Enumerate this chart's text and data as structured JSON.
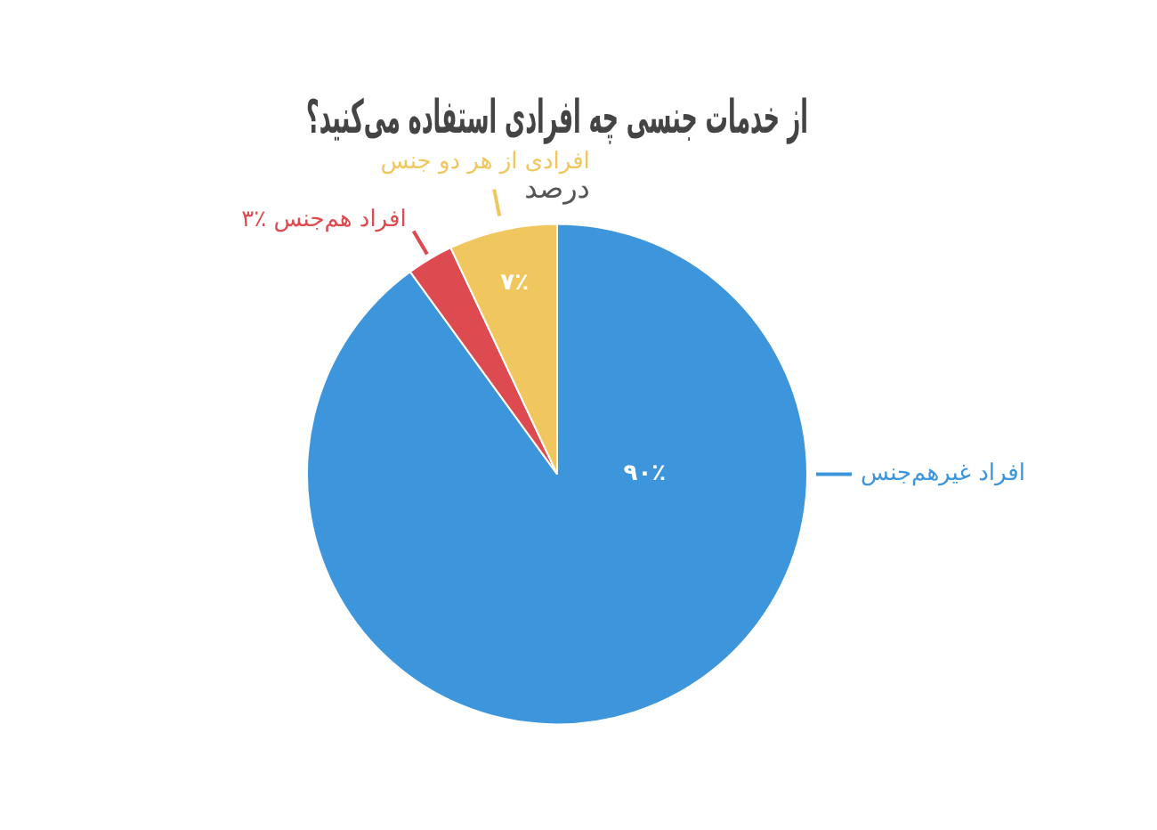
{
  "chart_data": {
    "type": "pie",
    "title": "از خدمات جنسی چه افرادی استفاده می‌کنید؟",
    "subtitle": "درصد",
    "categories": [
      "افراد غیرهم‌جنس",
      "افراد هم‌جنس",
      "افرادی از هر دو جنس"
    ],
    "values": [
      90,
      3,
      7
    ],
    "value_labels": [
      "۹۰٪",
      "۳٪",
      "۷٪"
    ],
    "colors": [
      "#3d96dc",
      "#dd4b50",
      "#f0c75e"
    ],
    "legend": false
  }
}
